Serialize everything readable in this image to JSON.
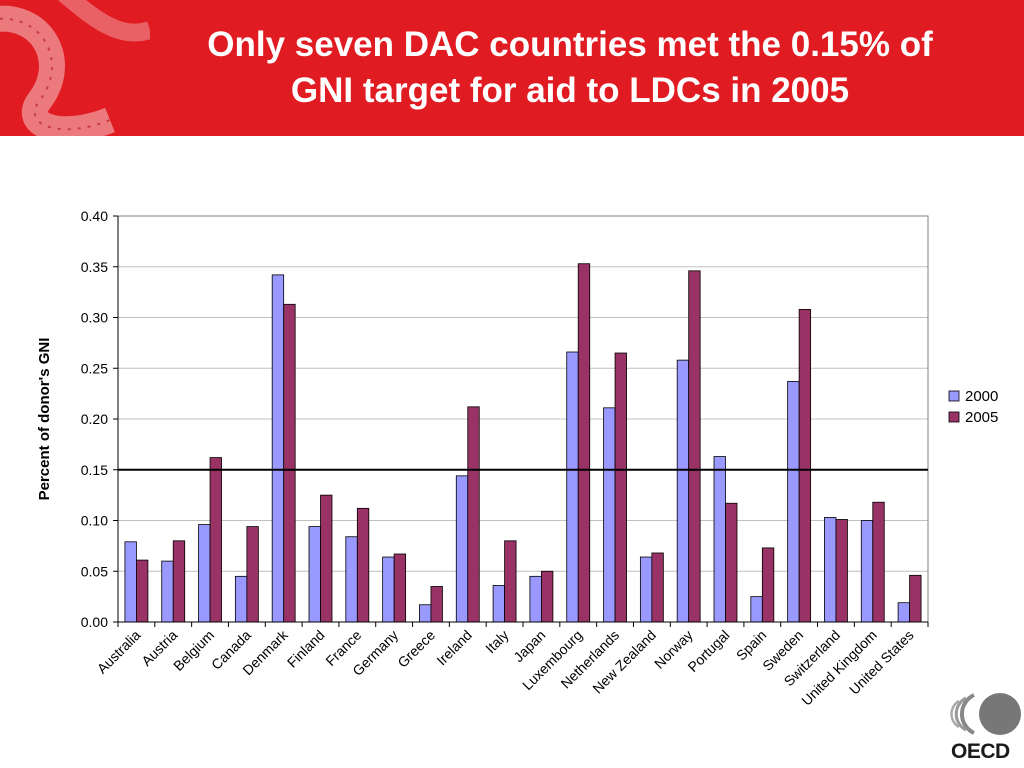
{
  "title_lines": [
    "Only seven DAC countries met the 0.15% of",
    "GNI target for aid to LDCs in 2005"
  ],
  "logo_text": "OECD",
  "colors": {
    "banner": "#e11b22",
    "series_2000": "#9999ff",
    "series_2005": "#993366",
    "target_line": "#000000"
  },
  "chart_data": {
    "type": "bar",
    "title": "",
    "xlabel": "",
    "ylabel": "Percent of donor's GNI",
    "ylim": [
      0,
      0.4
    ],
    "yticks": [
      "0.00",
      "0.05",
      "0.10",
      "0.15",
      "0.20",
      "0.25",
      "0.30",
      "0.35",
      "0.40"
    ],
    "grid": true,
    "legend_position": "right",
    "target_line": 0.15,
    "categories": [
      "Australia",
      "Austria",
      "Belgium",
      "Canada",
      "Denmark",
      "Finland",
      "France",
      "Germany",
      "Greece",
      "Ireland",
      "Italy",
      "Japan",
      "Luxembourg",
      "Netherlands",
      "New Zealand",
      "Norway",
      "Portugal",
      "Spain",
      "Sweden",
      "Switzerland",
      "United Kingdom",
      "United States"
    ],
    "series": [
      {
        "name": "2000",
        "values": [
          0.079,
          0.06,
          0.096,
          0.045,
          0.342,
          0.094,
          0.084,
          0.064,
          0.017,
          0.144,
          0.036,
          0.045,
          0.266,
          0.211,
          0.064,
          0.258,
          0.163,
          0.025,
          0.237,
          0.103,
          0.1,
          0.019
        ]
      },
      {
        "name": "2005",
        "values": [
          0.061,
          0.08,
          0.162,
          0.094,
          0.313,
          0.125,
          0.112,
          0.067,
          0.035,
          0.212,
          0.08,
          0.05,
          0.353,
          0.265,
          0.068,
          0.346,
          0.117,
          0.073,
          0.308,
          0.101,
          0.118,
          0.046
        ]
      }
    ]
  }
}
